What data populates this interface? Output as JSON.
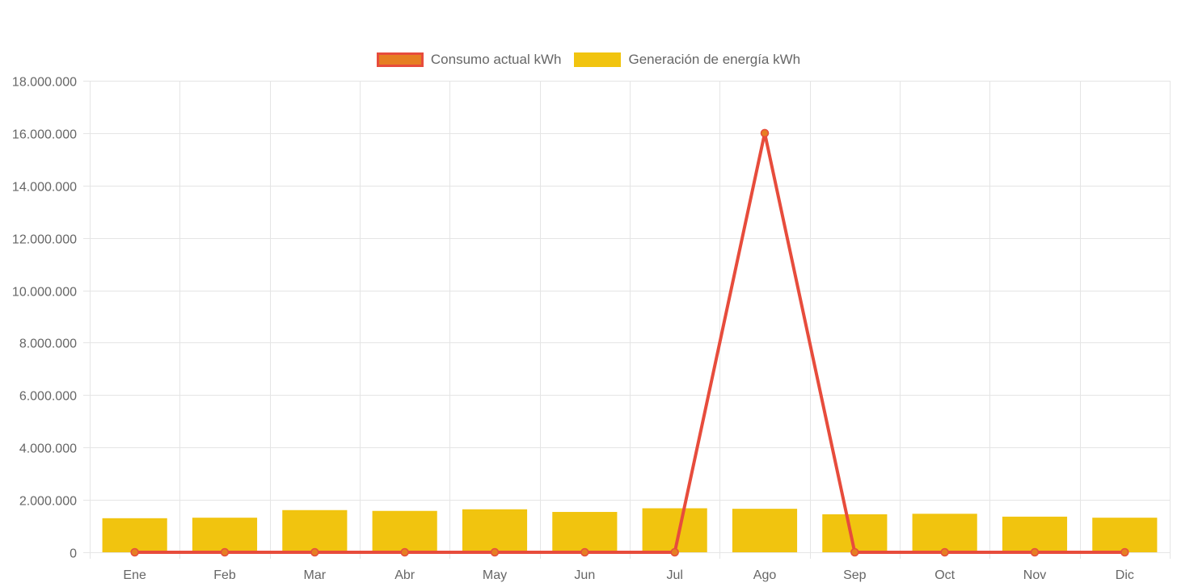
{
  "chart_data": {
    "type": "bar",
    "categories": [
      "Ene",
      "Feb",
      "Mar",
      "Abr",
      "May",
      "Jun",
      "Jul",
      "Ago",
      "Sep",
      "Oct",
      "Nov",
      "Dic"
    ],
    "series": [
      {
        "name": "Consumo actual kWh",
        "type": "line",
        "values": [
          0,
          0,
          0,
          0,
          0,
          0,
          0,
          16000000,
          0,
          0,
          0,
          0
        ]
      },
      {
        "name": "Generación de energía kWh",
        "type": "bar",
        "values": [
          1300000,
          1320000,
          1610000,
          1580000,
          1640000,
          1540000,
          1680000,
          1660000,
          1450000,
          1470000,
          1360000,
          1320000
        ]
      }
    ],
    "y_ticks": [
      "0",
      "2.000.000",
      "4.000.000",
      "6.000.000",
      "8.000.000",
      "10.000.000",
      "12.000.000",
      "14.000.000",
      "16.000.000",
      "18.000.000"
    ],
    "ylim": [
      0,
      18000000
    ],
    "grid": true,
    "legend_position": "top",
    "colors": {
      "line_stroke": "#e74c3c",
      "line_point_fill": "#e67e22",
      "bar_fill": "#f1c40f",
      "grid": "#e5e5e5",
      "text": "#666666"
    }
  }
}
